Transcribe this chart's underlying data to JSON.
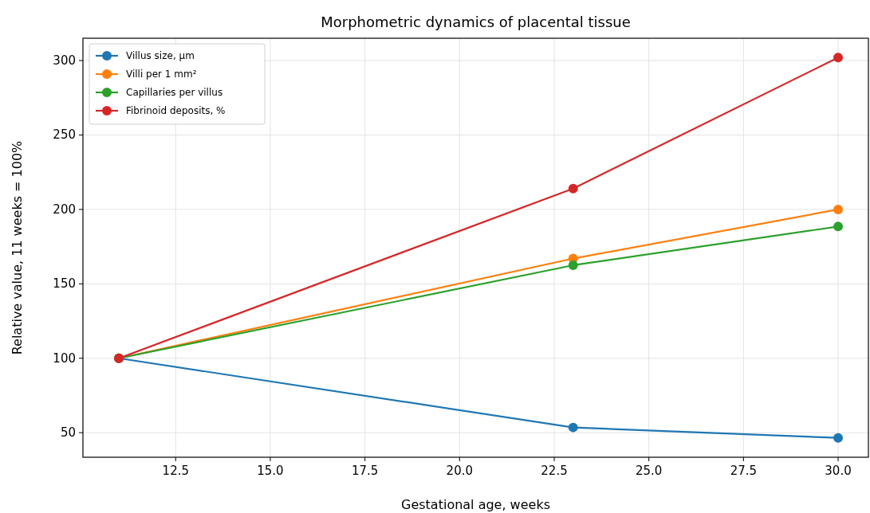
{
  "chart_data": {
    "type": "line",
    "title": "Morphometric dynamics of placental tissue",
    "xlabel": "Gestational age, weeks",
    "ylabel": "Relative value, 11 weeks = 100%",
    "x": [
      11,
      23,
      30
    ],
    "series": [
      {
        "name": "Villus size, µm",
        "color": "#1f77b4",
        "values": [
          100,
          53.5,
          46.5
        ]
      },
      {
        "name": "Villi per 1 mm²",
        "color": "#ff7f0e",
        "values": [
          100,
          167,
          200
        ]
      },
      {
        "name": "Capillaries per villus",
        "color": "#2ca02c",
        "values": [
          100,
          162.5,
          188.5
        ]
      },
      {
        "name": "Fibrinoid deposits, %",
        "color": "#d62728",
        "values": [
          100,
          214,
          302
        ]
      }
    ],
    "xlim": [
      10.05,
      30.8
    ],
    "xticks": [
      {
        "value": 12.5,
        "label": "12.5"
      },
      {
        "value": 15,
        "label": "15.0"
      },
      {
        "value": 17.5,
        "label": "17.5"
      },
      {
        "value": 20,
        "label": "20.0"
      },
      {
        "value": 22.5,
        "label": "22.5"
      },
      {
        "value": 25,
        "label": "25.0"
      },
      {
        "value": 27.5,
        "label": "27.5"
      },
      {
        "value": 30,
        "label": "30.0"
      }
    ],
    "ylim": [
      33.5,
      315
    ],
    "yticks": [
      50,
      100,
      150,
      200,
      250,
      300
    ],
    "grid": true,
    "legend": "top left",
    "marker": "circle",
    "line_style": "solid"
  }
}
